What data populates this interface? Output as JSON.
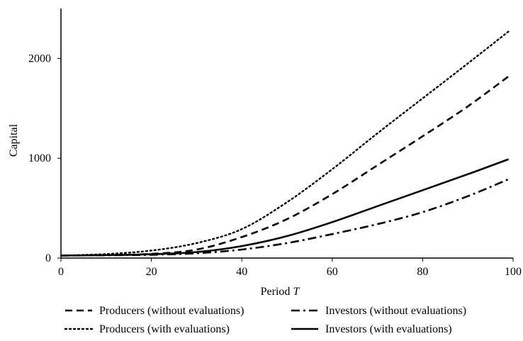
{
  "chart_data": {
    "type": "line",
    "title": "",
    "xlabel": "Period",
    "xlabel_italic_suffix": "T",
    "ylabel": "Capital",
    "xlim": [
      0,
      100
    ],
    "ylim": [
      0,
      2500
    ],
    "x_ticks": [
      0,
      20,
      40,
      60,
      80,
      100
    ],
    "y_ticks": [
      0,
      1000,
      2000
    ],
    "grid": false,
    "legend_position": "bottom",
    "x": [
      0,
      10,
      20,
      30,
      40,
      50,
      60,
      70,
      80,
      90,
      99
    ],
    "series": [
      {
        "name": "Producers (without evaluations)",
        "style": "dashed",
        "color": "#000000",
        "values": [
          25,
          30,
          42,
          85,
          210,
          390,
          640,
          930,
          1220,
          1520,
          1820
        ]
      },
      {
        "name": "Investors (without evaluations)",
        "style": "dashdot",
        "color": "#000000",
        "values": [
          25,
          28,
          33,
          48,
          85,
          150,
          240,
          340,
          460,
          620,
          790
        ]
      },
      {
        "name": "Producers (with evaluations)",
        "style": "dotted",
        "color": "#000000",
        "values": [
          25,
          40,
          75,
          150,
          290,
          560,
          890,
          1250,
          1600,
          1950,
          2270
        ]
      },
      {
        "name": "Investors (with evaluations)",
        "style": "solid",
        "color": "#000000",
        "values": [
          25,
          30,
          38,
          60,
          120,
          220,
          360,
          520,
          680,
          840,
          990
        ]
      }
    ]
  }
}
